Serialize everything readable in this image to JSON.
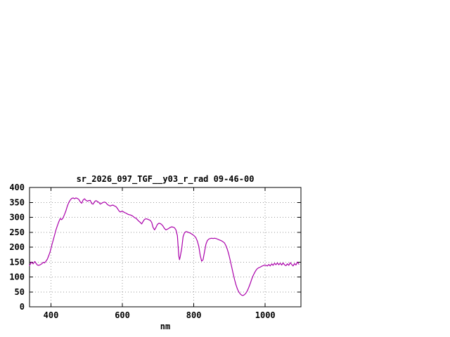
{
  "page": {
    "background": "#ffffff"
  },
  "chart_data": {
    "type": "line",
    "title": "sr_2026_097_TGF__y03_r_rad 09-46-00",
    "xlabel": "nm",
    "xlim": [
      340,
      1100
    ],
    "ylim": [
      0,
      400
    ],
    "xticks": [
      400,
      600,
      800,
      1000
    ],
    "yticks": [
      0,
      50,
      100,
      150,
      200,
      250,
      300,
      350,
      400
    ],
    "grid": true,
    "legend": "none",
    "line_color": "#aa00aa",
    "axis_color": "#000000",
    "grid_color": "#9a9a9a",
    "series": [
      {
        "name": "sr_2026_097_TGF__y03_r_rad",
        "points": [
          [
            340,
            138
          ],
          [
            345,
            150
          ],
          [
            350,
            144
          ],
          [
            355,
            152
          ],
          [
            358,
            146
          ],
          [
            362,
            140
          ],
          [
            366,
            139
          ],
          [
            370,
            141
          ],
          [
            374,
            144
          ],
          [
            378,
            149
          ],
          [
            382,
            147
          ],
          [
            386,
            153
          ],
          [
            390,
            160
          ],
          [
            394,
            172
          ],
          [
            398,
            186
          ],
          [
            402,
            205
          ],
          [
            406,
            222
          ],
          [
            410,
            240
          ],
          [
            414,
            258
          ],
          [
            418,
            272
          ],
          [
            422,
            285
          ],
          [
            426,
            296
          ],
          [
            430,
            292
          ],
          [
            434,
            298
          ],
          [
            438,
            310
          ],
          [
            442,
            322
          ],
          [
            446,
            338
          ],
          [
            450,
            350
          ],
          [
            454,
            358
          ],
          [
            458,
            363
          ],
          [
            462,
            365
          ],
          [
            466,
            362
          ],
          [
            470,
            365
          ],
          [
            474,
            363
          ],
          [
            478,
            360
          ],
          [
            482,
            352
          ],
          [
            486,
            347
          ],
          [
            490,
            358
          ],
          [
            494,
            362
          ],
          [
            498,
            357
          ],
          [
            502,
            354
          ],
          [
            506,
            356
          ],
          [
            510,
            357
          ],
          [
            514,
            346
          ],
          [
            518,
            344
          ],
          [
            522,
            352
          ],
          [
            526,
            356
          ],
          [
            530,
            353
          ],
          [
            534,
            350
          ],
          [
            538,
            344
          ],
          [
            542,
            347
          ],
          [
            546,
            350
          ],
          [
            550,
            351
          ],
          [
            554,
            349
          ],
          [
            558,
            343
          ],
          [
            562,
            340
          ],
          [
            566,
            338
          ],
          [
            570,
            340
          ],
          [
            574,
            341
          ],
          [
            578,
            338
          ],
          [
            582,
            336
          ],
          [
            586,
            330
          ],
          [
            590,
            322
          ],
          [
            594,
            318
          ],
          [
            598,
            320
          ],
          [
            602,
            319
          ],
          [
            606,
            316
          ],
          [
            610,
            314
          ],
          [
            614,
            311
          ],
          [
            618,
            309
          ],
          [
            622,
            308
          ],
          [
            626,
            306
          ],
          [
            630,
            303
          ],
          [
            634,
            299
          ],
          [
            638,
            297
          ],
          [
            642,
            292
          ],
          [
            646,
            287
          ],
          [
            650,
            283
          ],
          [
            654,
            278
          ],
          [
            658,
            286
          ],
          [
            662,
            293
          ],
          [
            666,
            295
          ],
          [
            670,
            294
          ],
          [
            674,
            292
          ],
          [
            678,
            290
          ],
          [
            682,
            283
          ],
          [
            686,
            266
          ],
          [
            690,
            258
          ],
          [
            694,
            266
          ],
          [
            698,
            276
          ],
          [
            702,
            280
          ],
          [
            706,
            279
          ],
          [
            710,
            276
          ],
          [
            714,
            270
          ],
          [
            718,
            262
          ],
          [
            722,
            258
          ],
          [
            726,
            260
          ],
          [
            730,
            263
          ],
          [
            734,
            266
          ],
          [
            738,
            268
          ],
          [
            742,
            267
          ],
          [
            746,
            265
          ],
          [
            750,
            258
          ],
          [
            754,
            238
          ],
          [
            758,
            170
          ],
          [
            760,
            158
          ],
          [
            762,
            168
          ],
          [
            766,
            195
          ],
          [
            770,
            235
          ],
          [
            774,
            248
          ],
          [
            778,
            252
          ],
          [
            782,
            251
          ],
          [
            786,
            249
          ],
          [
            790,
            247
          ],
          [
            794,
            244
          ],
          [
            798,
            241
          ],
          [
            802,
            237
          ],
          [
            806,
            231
          ],
          [
            810,
            220
          ],
          [
            814,
            203
          ],
          [
            818,
            172
          ],
          [
            822,
            153
          ],
          [
            826,
            158
          ],
          [
            830,
            185
          ],
          [
            834,
            210
          ],
          [
            838,
            222
          ],
          [
            842,
            227
          ],
          [
            846,
            229
          ],
          [
            850,
            230
          ],
          [
            854,
            229
          ],
          [
            858,
            230
          ],
          [
            862,
            229
          ],
          [
            866,
            227
          ],
          [
            870,
            225
          ],
          [
            874,
            223
          ],
          [
            878,
            221
          ],
          [
            882,
            218
          ],
          [
            886,
            214
          ],
          [
            890,
            205
          ],
          [
            894,
            192
          ],
          [
            898,
            176
          ],
          [
            902,
            156
          ],
          [
            906,
            134
          ],
          [
            910,
            112
          ],
          [
            914,
            92
          ],
          [
            918,
            74
          ],
          [
            922,
            60
          ],
          [
            926,
            50
          ],
          [
            930,
            43
          ],
          [
            934,
            39
          ],
          [
            938,
            38
          ],
          [
            942,
            41
          ],
          [
            946,
            46
          ],
          [
            950,
            54
          ],
          [
            954,
            65
          ],
          [
            958,
            78
          ],
          [
            962,
            92
          ],
          [
            966,
            104
          ],
          [
            970,
            114
          ],
          [
            974,
            122
          ],
          [
            978,
            128
          ],
          [
            982,
            131
          ],
          [
            986,
            133
          ],
          [
            990,
            136
          ],
          [
            994,
            138
          ],
          [
            998,
            140
          ],
          [
            1002,
            139
          ],
          [
            1006,
            137
          ],
          [
            1010,
            142
          ],
          [
            1014,
            137
          ],
          [
            1018,
            144
          ],
          [
            1022,
            139
          ],
          [
            1026,
            146
          ],
          [
            1030,
            141
          ],
          [
            1034,
            147
          ],
          [
            1038,
            141
          ],
          [
            1042,
            146
          ],
          [
            1046,
            140
          ],
          [
            1050,
            147
          ],
          [
            1054,
            141
          ],
          [
            1058,
            138
          ],
          [
            1062,
            144
          ],
          [
            1066,
            139
          ],
          [
            1070,
            148
          ],
          [
            1074,
            142
          ],
          [
            1078,
            137
          ],
          [
            1082,
            145
          ],
          [
            1086,
            140
          ],
          [
            1090,
            150
          ],
          [
            1094,
            143
          ]
        ]
      }
    ]
  }
}
